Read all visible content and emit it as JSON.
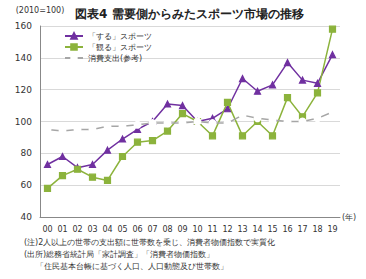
{
  "chart_data": {
    "type": "line",
    "title": "図表4 需要側からみたスポーツ市場の推移",
    "y_label": "(2010=100)",
    "x_label": "(年)",
    "categories": [
      "00",
      "01",
      "02",
      "03",
      "04",
      "05",
      "06",
      "07",
      "08",
      "09",
      "10",
      "11",
      "12",
      "13",
      "14",
      "15",
      "16",
      "17",
      "18",
      "19"
    ],
    "series": [
      {
        "name": "「する」スポーツ",
        "color": "#7030a0",
        "marker": "triangle",
        "values": [
          73,
          78,
          71,
          73,
          82,
          89,
          95,
          100,
          111,
          110,
          100,
          102,
          108,
          127,
          119,
          123,
          137,
          126,
          124,
          142
        ]
      },
      {
        "name": "「観る」スポーツ",
        "color": "#8cb33c",
        "marker": "square",
        "values": [
          58,
          66,
          70,
          65,
          63,
          78,
          87,
          88,
          94,
          105,
          100,
          91,
          112,
          91,
          100,
          91,
          115,
          103,
          118,
          158
        ]
      },
      {
        "name": "消費支出(参考)",
        "color": "#a6a6a6",
        "marker": "open_circle",
        "values": [
          95,
          94,
          95,
          95,
          97,
          97,
          98,
          99,
          99,
          99,
          100,
          99,
          99,
          104,
          102,
          101,
          100,
          100,
          102,
          106
        ]
      }
    ],
    "ylim": [
      40,
      160
    ],
    "yticks": [
      40,
      60,
      80,
      100,
      120,
      140,
      160
    ],
    "grid": true,
    "legend": "upper left",
    "notes": [
      "(注)2人以上の世帯の支出額に世帯数を乗じ、消費者物価指数で実質化",
      "(出所)総務省統計局「家計調査」「消費者物価指数」",
      "「住民基本台帳に基づく人口、人口動態及び世帯数」"
    ]
  }
}
